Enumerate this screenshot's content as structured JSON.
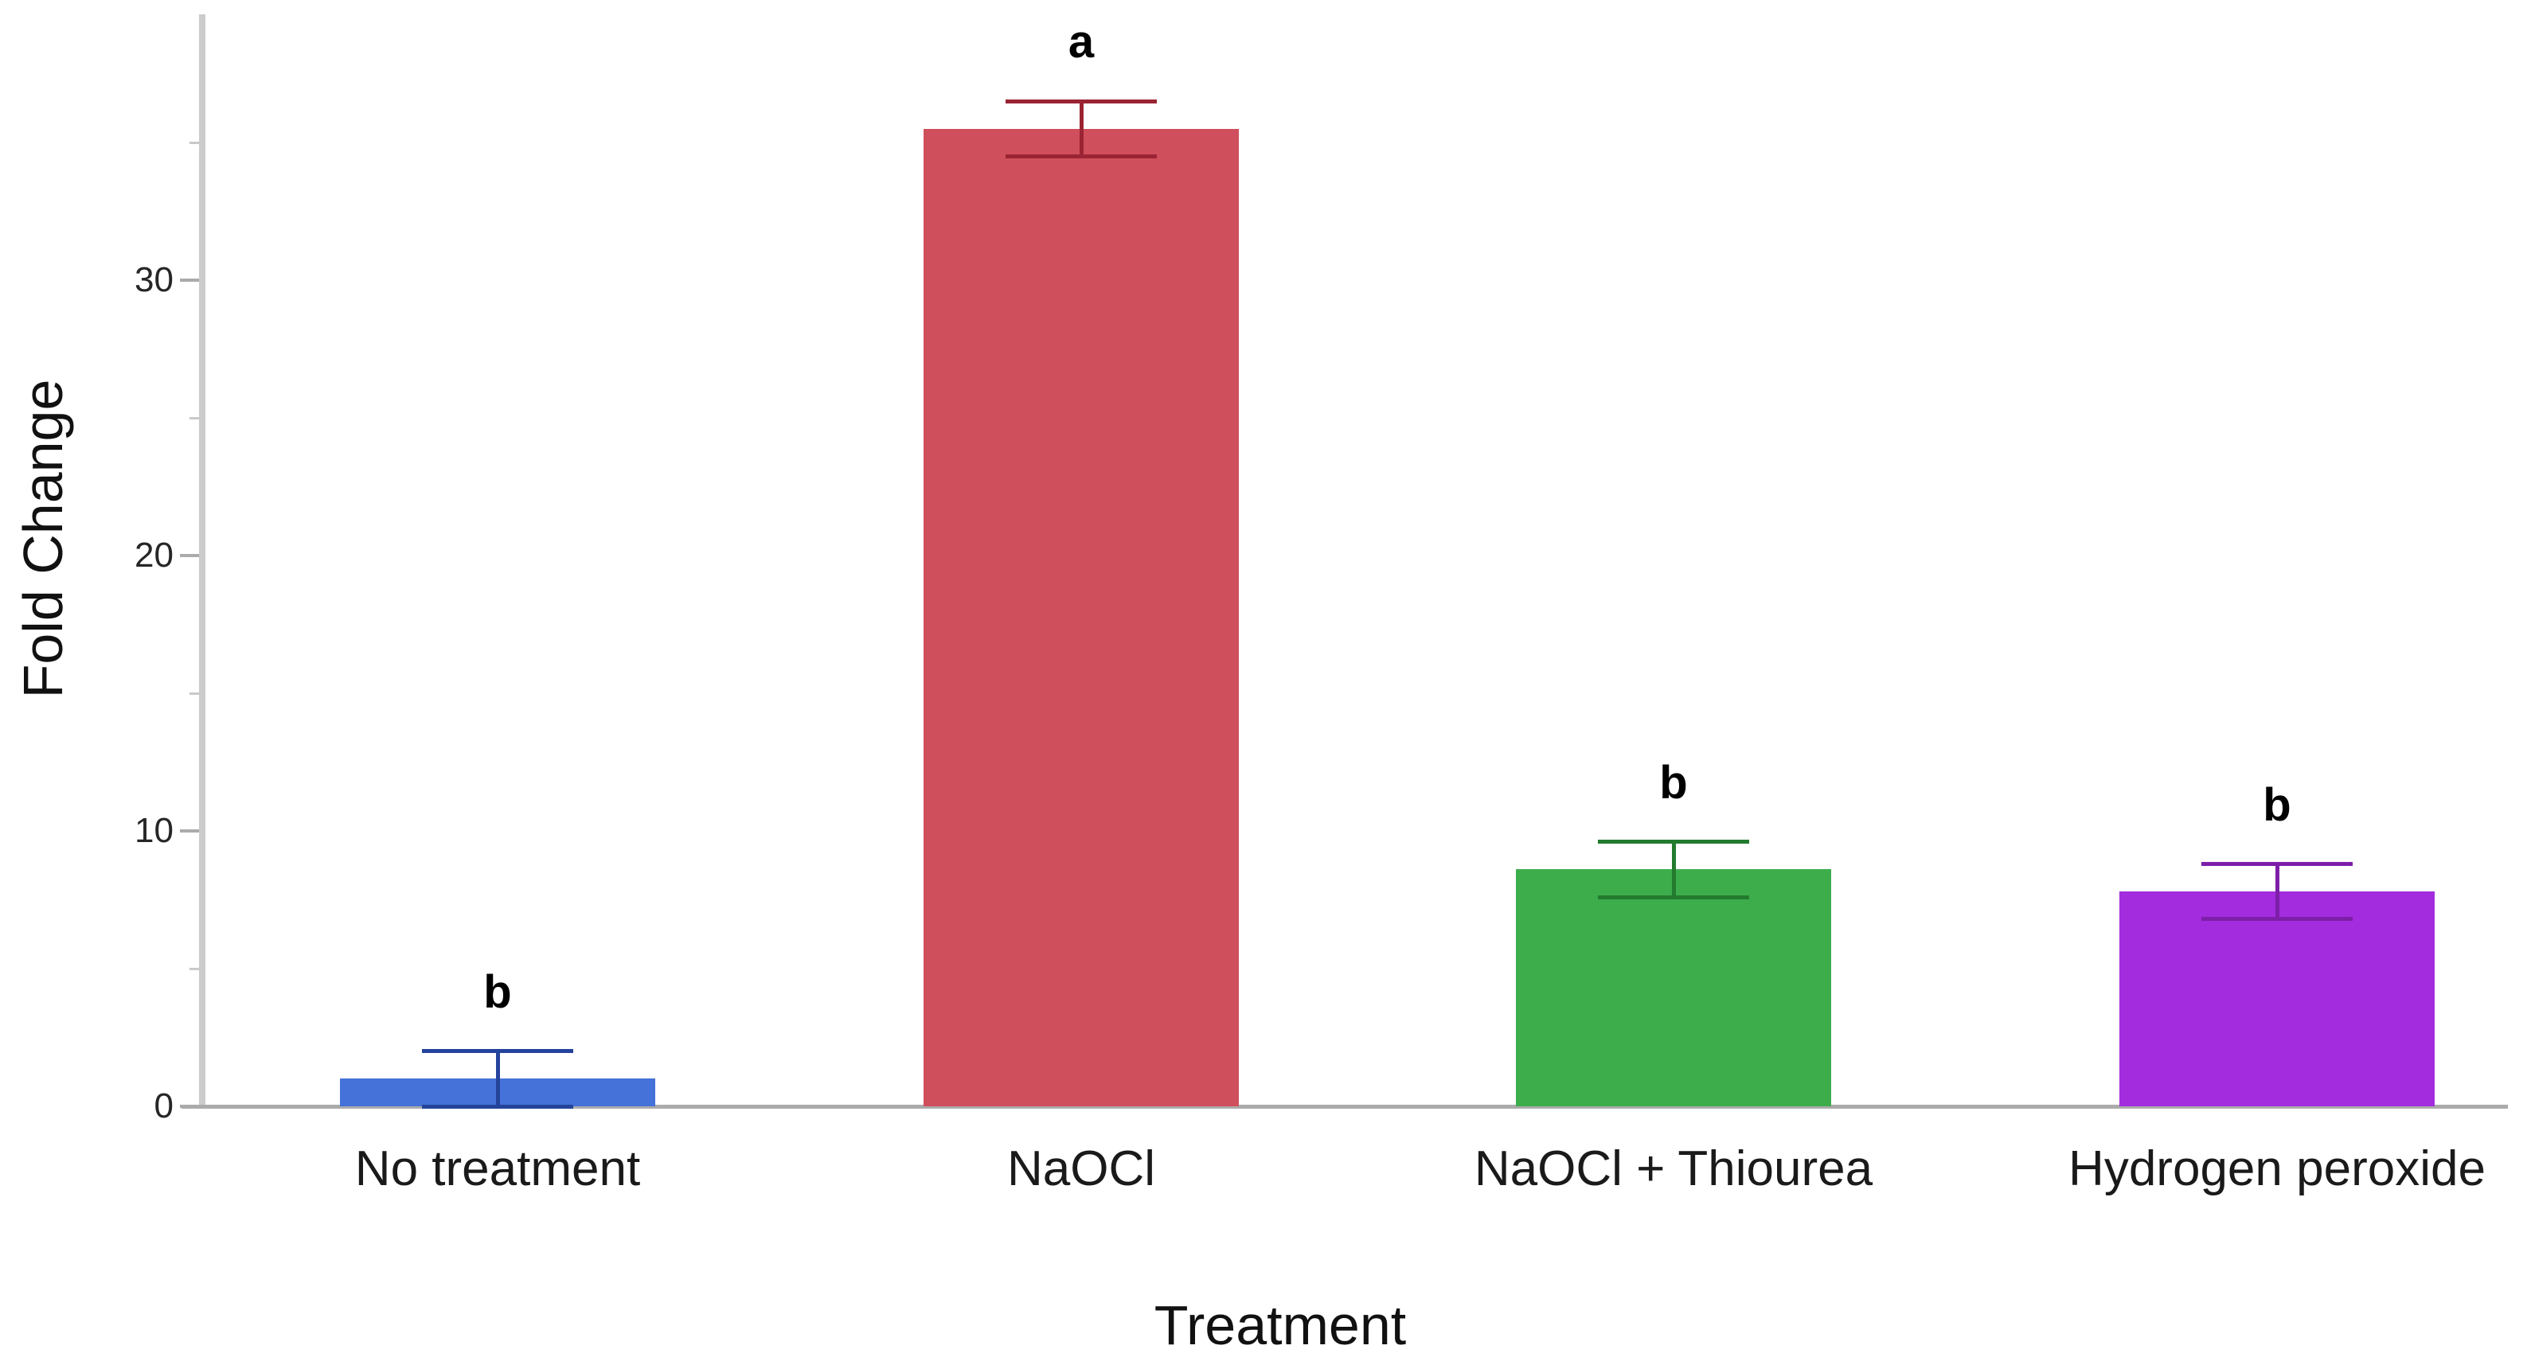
{
  "chart_data": {
    "type": "bar",
    "title": "",
    "xlabel": "Treatment",
    "ylabel": "Fold Change",
    "categories": [
      "No treatment",
      "NaOCl",
      "NaOCl + Thiourea",
      "Hydrogen peroxide"
    ],
    "values": [
      1.0,
      35.5,
      8.6,
      7.8
    ],
    "errors": [
      1.0,
      1.0,
      1.0,
      1.0
    ],
    "significance_letters": [
      "b",
      "a",
      "b",
      "b"
    ],
    "bar_colors": [
      "#4472D8",
      "#D04F5C",
      "#3DAD4C",
      "#A32CDE"
    ],
    "error_bar_colors": [
      "#24439B",
      "#9A2433",
      "#237B2F",
      "#7D1FA8"
    ],
    "axis": {
      "y_major_ticks": [
        0,
        10,
        20,
        30
      ],
      "y_minor_ticks": [
        5,
        15,
        25,
        35
      ],
      "ylim": [
        0,
        39.6
      ],
      "grid": false,
      "legend": "none",
      "y_axis_line_color": "#CBCBCB",
      "x_axis_line_color": "#ABABAB"
    }
  }
}
